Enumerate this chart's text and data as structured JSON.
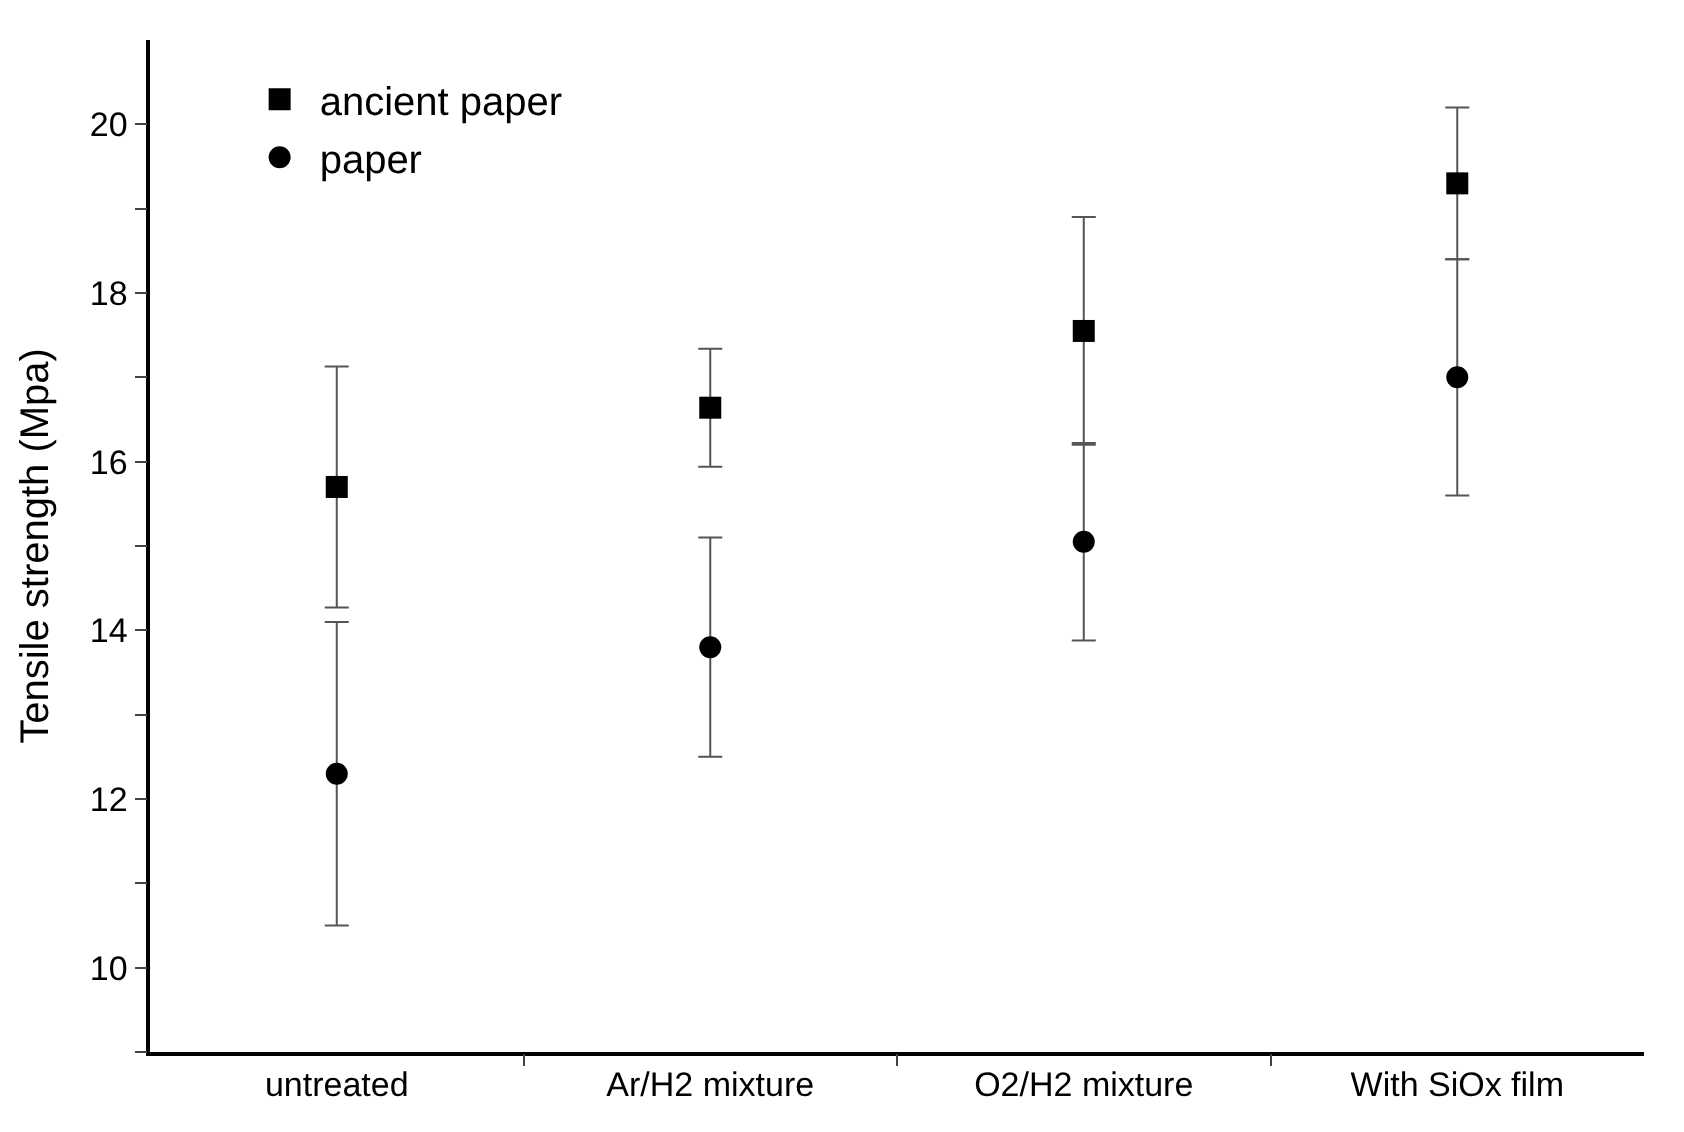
{
  "chart_data": {
    "type": "scatter",
    "ylabel": "Tensile strength (Mpa)",
    "categories": [
      "untreated",
      "Ar/H2 mixture",
      "O2/H2 mixture",
      "With SiOx film"
    ],
    "series": [
      {
        "name": "ancient paper",
        "color": "#000000",
        "marker": "square",
        "values": [
          15.7,
          16.64,
          17.55,
          19.3
        ],
        "errors": [
          1.43,
          0.7,
          1.35,
          0.9
        ]
      },
      {
        "name": "paper",
        "color": "#000000",
        "marker": "circle",
        "values": [
          12.3,
          13.8,
          15.05,
          17.0
        ],
        "errors": [
          1.8,
          1.3,
          1.17,
          1.4
        ]
      }
    ],
    "ylim": [
      9,
      21
    ],
    "yticks": [
      {
        "value": 9,
        "label": null
      },
      10,
      {
        "value": 11,
        "label": null
      },
      12,
      {
        "value": 13,
        "label": null
      },
      14,
      {
        "value": 15,
        "label": null
      },
      16,
      {
        "value": 17,
        "label": null
      },
      18,
      {
        "value": 19,
        "label": null
      },
      20
    ],
    "legend": "top left"
  }
}
